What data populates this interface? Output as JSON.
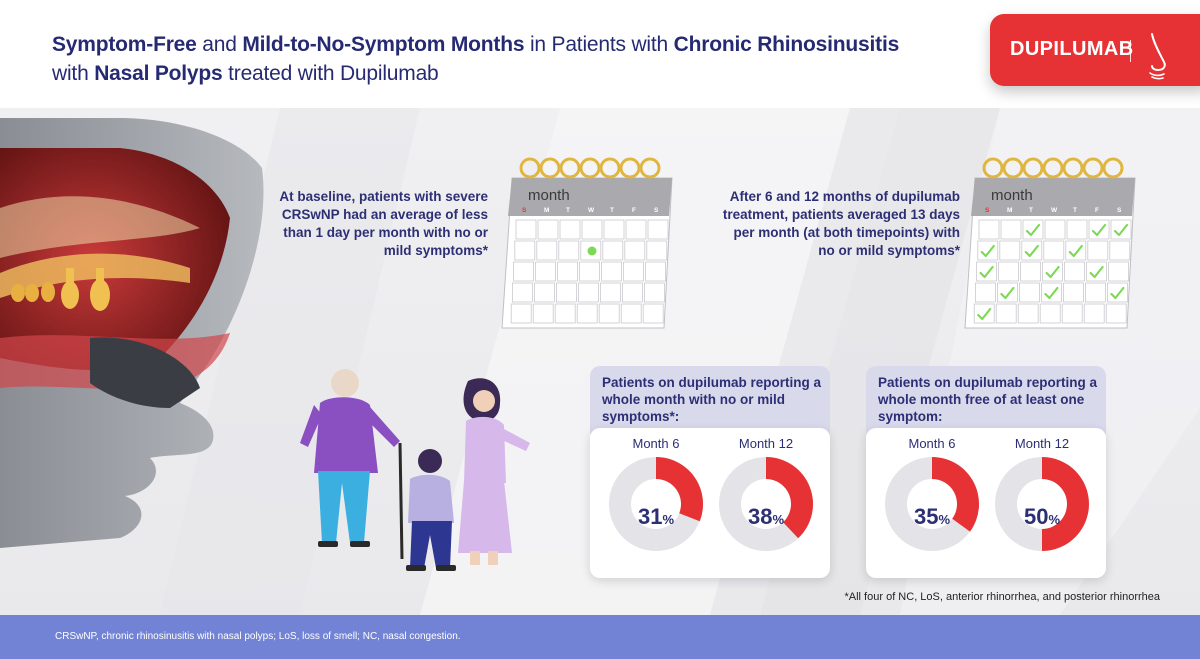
{
  "header": {
    "title_parts": [
      {
        "text": "Symptom-Free",
        "bold": true
      },
      {
        "text": " and ",
        "bold": false
      },
      {
        "text": "Mild-to-No-Symptom Months",
        "bold": true
      },
      {
        "text": " in Patients with ",
        "bold": false
      },
      {
        "text": "Chronic Rhinosinusitis",
        "bold": true
      },
      {
        "text": " with ",
        "bold": false,
        "break_before": true
      },
      {
        "text": "Nasal Polyps",
        "bold": true
      },
      {
        "text": " treated with Dupilumab",
        "bold": false
      }
    ],
    "brand": "DUPILUMAB",
    "brand_icon": "nose-icon"
  },
  "colors": {
    "accent_red": "#e63234",
    "navy_text": "#2d2f75",
    "donut_gray": "#e4e4e8",
    "footer_blue": "#7283d6",
    "calendar_ring_gold": "#e0b640",
    "check_green": "#7ed957"
  },
  "calendars": [
    {
      "id": "baseline",
      "month_label": "month",
      "weekdays": [
        "S",
        "M",
        "T",
        "W",
        "T",
        "F",
        "S"
      ],
      "marker": "green-dot",
      "marked_days": 1,
      "text": "At baseline, patients with severe CRSwNP had an average of less than 1 day per month with no or mild symptoms*"
    },
    {
      "id": "after",
      "month_label": "month",
      "weekdays": [
        "S",
        "M",
        "T",
        "W",
        "T",
        "F",
        "S"
      ],
      "marker": "check-icon",
      "marked_days": 13,
      "text": "After 6 and 12 months of dupilumab treatment, patients averaged 13 days per month (at both timepoints) with no or mild symptoms*"
    }
  ],
  "panels": [
    {
      "id": "no-or-mild",
      "title": "Patients on dupilumab reporting a whole month with no or mild symptoms*:"
    },
    {
      "id": "free-of-one",
      "title_parts": [
        {
          "text": "Patients on dupilumab reporting a whole month ",
          "bold": false
        },
        {
          "text": "free of at least one symptom:",
          "bold": true
        }
      ]
    }
  ],
  "chart_data": [
    {
      "type": "pie",
      "title": "Patients on dupilumab reporting a whole month with no or mild symptoms*:",
      "categories": [
        "Month 6",
        "Month 12"
      ],
      "values": [
        31,
        38
      ],
      "unit": "%"
    },
    {
      "type": "pie",
      "title": "Patients on dupilumab reporting a whole month free of at least one symptom:",
      "categories": [
        "Month 6",
        "Month 12"
      ],
      "values": [
        35,
        50
      ],
      "unit": "%"
    }
  ],
  "footnote": "*All four of NC, LoS, anterior rhinorrhea, and posterior rhinorrhea",
  "footer": "CRSwNP, chronic rhinosinusitis with nasal polyps; LoS, loss of smell; NC, nasal congestion."
}
